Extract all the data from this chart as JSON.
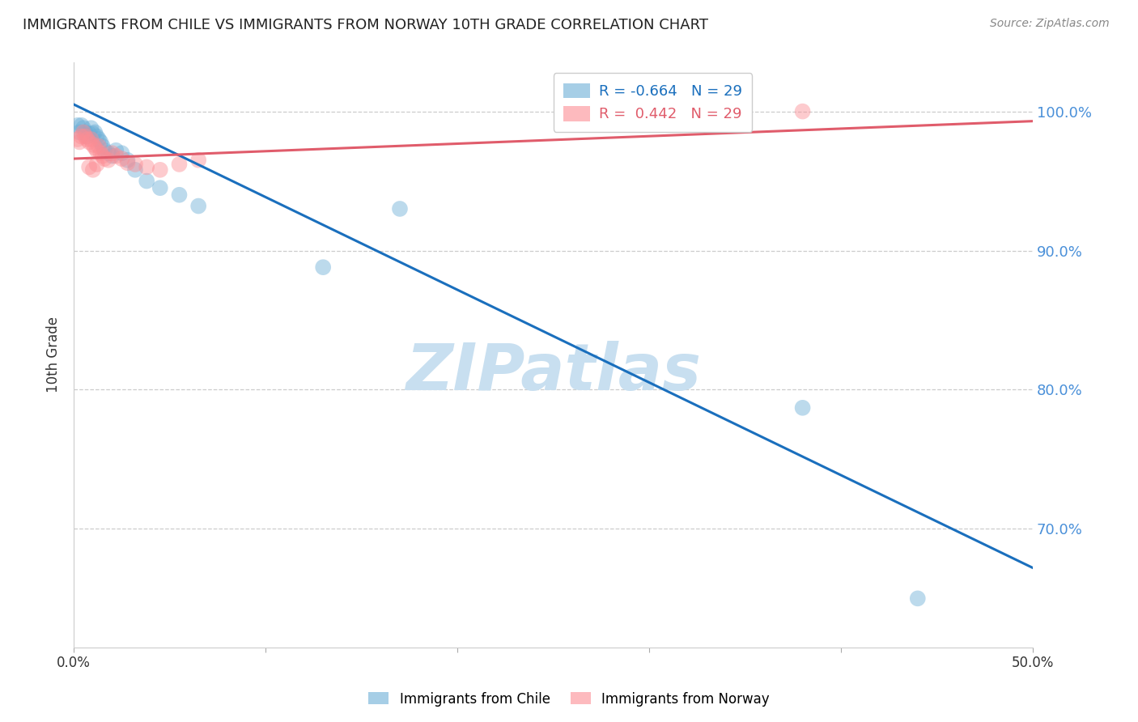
{
  "title": "IMMIGRANTS FROM CHILE VS IMMIGRANTS FROM NORWAY 10TH GRADE CORRELATION CHART",
  "source": "Source: ZipAtlas.com",
  "ylabel": "10th Grade",
  "xlim": [
    0.0,
    0.5
  ],
  "ylim": [
    0.615,
    1.035
  ],
  "ytick_labels": [
    "70.0%",
    "80.0%",
    "90.0%",
    "100.0%"
  ],
  "ytick_values": [
    0.7,
    0.8,
    0.9,
    1.0
  ],
  "xtick_values": [
    0.0,
    0.1,
    0.2,
    0.3,
    0.4,
    0.5
  ],
  "xtick_labels": [
    "0.0%",
    "",
    "",
    "",
    "",
    "50.0%"
  ],
  "chile_color": "#6baed6",
  "norway_color": "#fc8d94",
  "trend_chile_color": "#1a6fbd",
  "trend_norway_color": "#e05c6b",
  "watermark_color": "#c8dff0",
  "R_chile": -0.664,
  "N_chile": 29,
  "R_norway": 0.442,
  "N_norway": 29,
  "chile_line_x": [
    0.0,
    0.5
  ],
  "chile_line_y": [
    1.005,
    0.672
  ],
  "norway_line_x": [
    0.0,
    0.5
  ],
  "norway_line_y": [
    0.966,
    0.993
  ],
  "chile_x": [
    0.002,
    0.003,
    0.004,
    0.005,
    0.006,
    0.007,
    0.008,
    0.009,
    0.01,
    0.011,
    0.012,
    0.013,
    0.014,
    0.015,
    0.016,
    0.018,
    0.02,
    0.022,
    0.025,
    0.028,
    0.032,
    0.038,
    0.045,
    0.055,
    0.065,
    0.13,
    0.17,
    0.38,
    0.44
  ],
  "chile_y": [
    0.99,
    0.985,
    0.99,
    0.988,
    0.985,
    0.982,
    0.984,
    0.988,
    0.984,
    0.985,
    0.982,
    0.98,
    0.978,
    0.975,
    0.972,
    0.97,
    0.968,
    0.972,
    0.97,
    0.965,
    0.958,
    0.95,
    0.945,
    0.94,
    0.932,
    0.888,
    0.93,
    0.787,
    0.65
  ],
  "norway_x": [
    0.002,
    0.003,
    0.004,
    0.005,
    0.006,
    0.007,
    0.008,
    0.009,
    0.01,
    0.011,
    0.012,
    0.013,
    0.014,
    0.015,
    0.016,
    0.018,
    0.02,
    0.022,
    0.025,
    0.028,
    0.032,
    0.038,
    0.045,
    0.055,
    0.065,
    0.38,
    0.01,
    0.012,
    0.008
  ],
  "norway_y": [
    0.98,
    0.978,
    0.982,
    0.985,
    0.982,
    0.98,
    0.978,
    0.98,
    0.976,
    0.974,
    0.972,
    0.975,
    0.97,
    0.968,
    0.966,
    0.965,
    0.97,
    0.968,
    0.966,
    0.963,
    0.962,
    0.96,
    0.958,
    0.962,
    0.965,
    1.0,
    0.958,
    0.962,
    0.96
  ],
  "marker_size": 200,
  "alpha": 0.45,
  "background_color": "#ffffff",
  "grid_color": "#cccccc"
}
